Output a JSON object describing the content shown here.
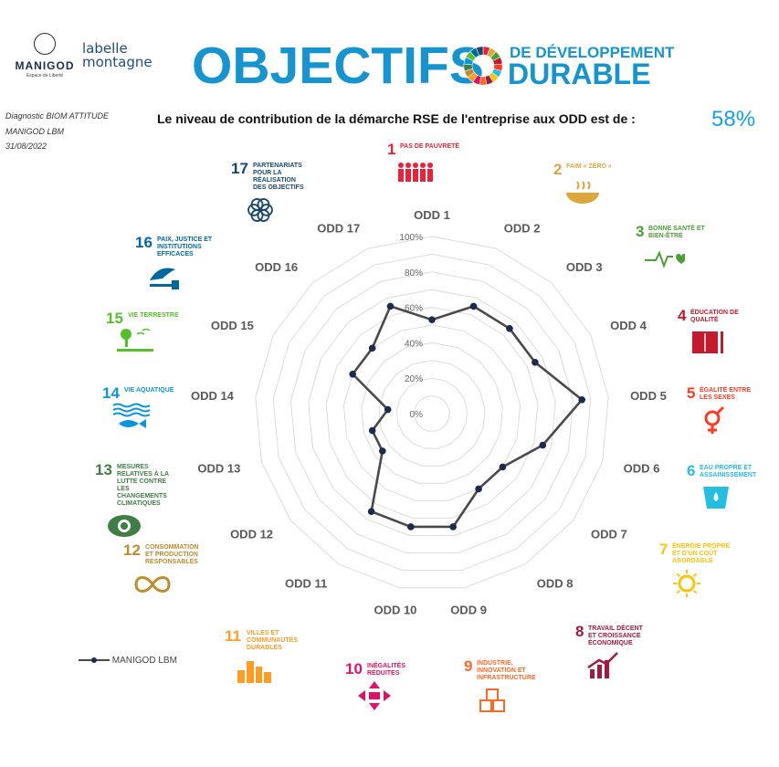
{
  "logos": {
    "manigod_name": "MANIGOD",
    "manigod_tagline": "Espace de Liberté",
    "lbm_line1": "labelle",
    "lbm_line2": "montagne"
  },
  "header": {
    "title_main": "OBJECTIFS",
    "title_sub_line1": "DE DÉVELOPPEMENT",
    "title_sub_line2": "DURABLE"
  },
  "meta": {
    "line1": "Diagnostic BIOM ATTITUDE",
    "line2": "MANIGOD LBM",
    "line3": "31/08/2022"
  },
  "subtitle": "Le niveau de contribution de la démarche RSE de l'entreprise aux ODD est de :",
  "score": "58%",
  "sdg_tiles": [
    {
      "number": "1",
      "label": "PAS DE PAUVRETÉ",
      "color": "#e5243b"
    },
    {
      "number": "2",
      "label": "FAIM « ZÉRO »",
      "color": "#dda63a"
    },
    {
      "number": "3",
      "label": "BONNE SANTÉ ET BIEN-ÊTRE",
      "color": "#4c9f38"
    },
    {
      "number": "4",
      "label": "ÉDUCATION DE QUALITÉ",
      "color": "#c5192d"
    },
    {
      "number": "5",
      "label": "ÉGALITÉ ENTRE LES SEXES",
      "color": "#ff3a21"
    },
    {
      "number": "6",
      "label": "EAU PROPRE ET ASSAINISSEMENT",
      "color": "#26bde2"
    },
    {
      "number": "7",
      "label": "ÉNERGIE PROPRE ET D'UN COÛT ABORDABLE",
      "color": "#fcc30b"
    },
    {
      "number": "8",
      "label": "TRAVAIL DÉCENT ET CROISSANCE ÉCONOMIQUE",
      "color": "#a21942"
    },
    {
      "number": "9",
      "label": "INDUSTRIE, INNOVATION ET INFRASTRUCTURE",
      "color": "#fd6925"
    },
    {
      "number": "10",
      "label": "INÉGALITÉS RÉDUITES",
      "color": "#dd1367"
    },
    {
      "number": "11",
      "label": "VILLES ET COMMUNAUTÉS DURABLES",
      "color": "#fd9d24"
    },
    {
      "number": "12",
      "label": "CONSOMMATION ET PRODUCTION RESPONSABLES",
      "color": "#bf8b2e"
    },
    {
      "number": "13",
      "label": "MESURES RELATIVES À LA LUTTE CONTRE LES CHANGEMENTS CLIMATIQUES",
      "color": "#3f7e44"
    },
    {
      "number": "14",
      "label": "VIE AQUATIQUE",
      "color": "#0a97d9"
    },
    {
      "number": "15",
      "label": "VIE TERRESTRE",
      "color": "#56c02b"
    },
    {
      "number": "16",
      "label": "PAIX, JUSTICE ET INSTITUTIONS EFFICACES",
      "color": "#00689d"
    },
    {
      "number": "17",
      "label": "PARTENARIATS POUR LA RÉALISATION DES OBJECTIFS",
      "color": "#19486a"
    }
  ],
  "chart_data": {
    "type": "radar",
    "categories": [
      "ODD 1",
      "ODD 2",
      "ODD 3",
      "ODD 4",
      "ODD 5",
      "ODD 6",
      "ODD 7",
      "ODD 8",
      "ODD 9",
      "ODD 10",
      "ODD 11",
      "ODD 12",
      "ODD 13",
      "ODD 14",
      "ODD 15",
      "ODD 16",
      "ODD 17"
    ],
    "series": [
      {
        "name": "MANIGOD LBM",
        "values": [
          53,
          65,
          65,
          65,
          85,
          65,
          50,
          50,
          65,
          65,
          65,
          35,
          35,
          25,
          50,
          50,
          65
        ],
        "color": "#4a4a4a"
      }
    ],
    "ticks": [
      "0%",
      "20%",
      "40%",
      "60%",
      "80%",
      "100%"
    ],
    "rlim": [
      0,
      100
    ],
    "grid": true,
    "legend": "bottom-left"
  }
}
